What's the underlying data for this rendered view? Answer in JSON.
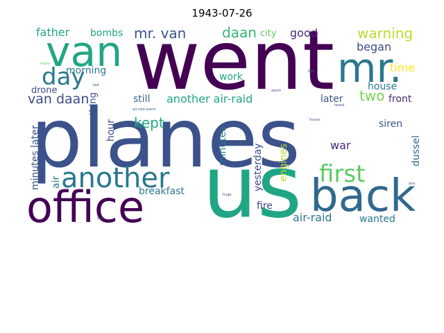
{
  "title": "1943-07-26",
  "words": [
    {
      "text": "went",
      "color": "#440154"
    },
    {
      "text": "planes",
      "color": "#3b528b"
    },
    {
      "text": "us",
      "color": "#21a685"
    },
    {
      "text": "office",
      "color": "#440154"
    },
    {
      "text": "back",
      "color": "#31688e"
    },
    {
      "text": "van",
      "color": "#21a685"
    },
    {
      "text": "mr.",
      "color": "#2a788e"
    },
    {
      "text": "another",
      "color": "#2a788e"
    },
    {
      "text": "first",
      "color": "#5ec962"
    },
    {
      "text": "day",
      "color": "#2a788e"
    },
    {
      "text": "father",
      "color": "#21a685"
    },
    {
      "text": "bombs",
      "color": "#21a685"
    },
    {
      "text": "mr. van",
      "color": "#3b528b"
    },
    {
      "text": "daan",
      "color": "#35b779"
    },
    {
      "text": "city",
      "color": "#5ec962"
    },
    {
      "text": "good",
      "color": "#482878"
    },
    {
      "text": "warning",
      "color": "#b5de2b"
    },
    {
      "text": "began",
      "color": "#3e4989"
    },
    {
      "text": "time",
      "color": "#fde725"
    },
    {
      "text": "morning",
      "color": "#2a788e"
    },
    {
      "text": "work",
      "color": "#21a685"
    },
    {
      "text": "house",
      "color": "#2a788e"
    },
    {
      "text": "two",
      "color": "#7ad151"
    },
    {
      "text": "front",
      "color": "#482878"
    },
    {
      "text": "drone",
      "color": "#3e4989"
    },
    {
      "text": "van daan",
      "color": "#3e4989"
    },
    {
      "text": "still",
      "color": "#31688e"
    },
    {
      "text": "another air-raid",
      "color": "#21a685"
    },
    {
      "text": "later",
      "color": "#3b528b"
    },
    {
      "text": "kept",
      "color": "#21a685"
    },
    {
      "text": "something",
      "color": "#3b528b"
    },
    {
      "text": "hour",
      "color": "#3e4989"
    },
    {
      "text": "minutes later",
      "color": "#3b528b"
    },
    {
      "text": "air",
      "color": "#2a788e"
    },
    {
      "text": "minutes",
      "color": "#2a788e"
    },
    {
      "text": "yesterday",
      "color": "#3e4989"
    },
    {
      "text": "engines",
      "color": "#b5de2b"
    },
    {
      "text": "siren",
      "color": "#3b528b"
    },
    {
      "text": "dussel",
      "color": "#31688e"
    },
    {
      "text": "war",
      "color": "#482878"
    },
    {
      "text": "breakfast",
      "color": "#2a788e"
    },
    {
      "text": "fire",
      "color": "#3e4989"
    },
    {
      "text": "air-raid",
      "color": "#2a788e"
    },
    {
      "text": "wanted",
      "color": "#2a788e"
    },
    {
      "text": "really",
      "color": "#5ec962"
    },
    {
      "text": "bad",
      "color": "#3b528b"
    },
    {
      "text": "last",
      "color": "#3b528b"
    },
    {
      "text": "alarm",
      "color": "#3b528b"
    },
    {
      "text": "air-raid alarm",
      "color": "#31688e"
    },
    {
      "text": "heard",
      "color": "#3b528b"
    },
    {
      "text": "finally",
      "color": "#3e4989"
    },
    {
      "text": "house",
      "color": "#3b528b"
    },
    {
      "text": "huge",
      "color": "#3b528b"
    },
    {
      "text": "one",
      "color": "#3b528b"
    },
    {
      "text": "end",
      "color": "#3b528b"
    }
  ]
}
